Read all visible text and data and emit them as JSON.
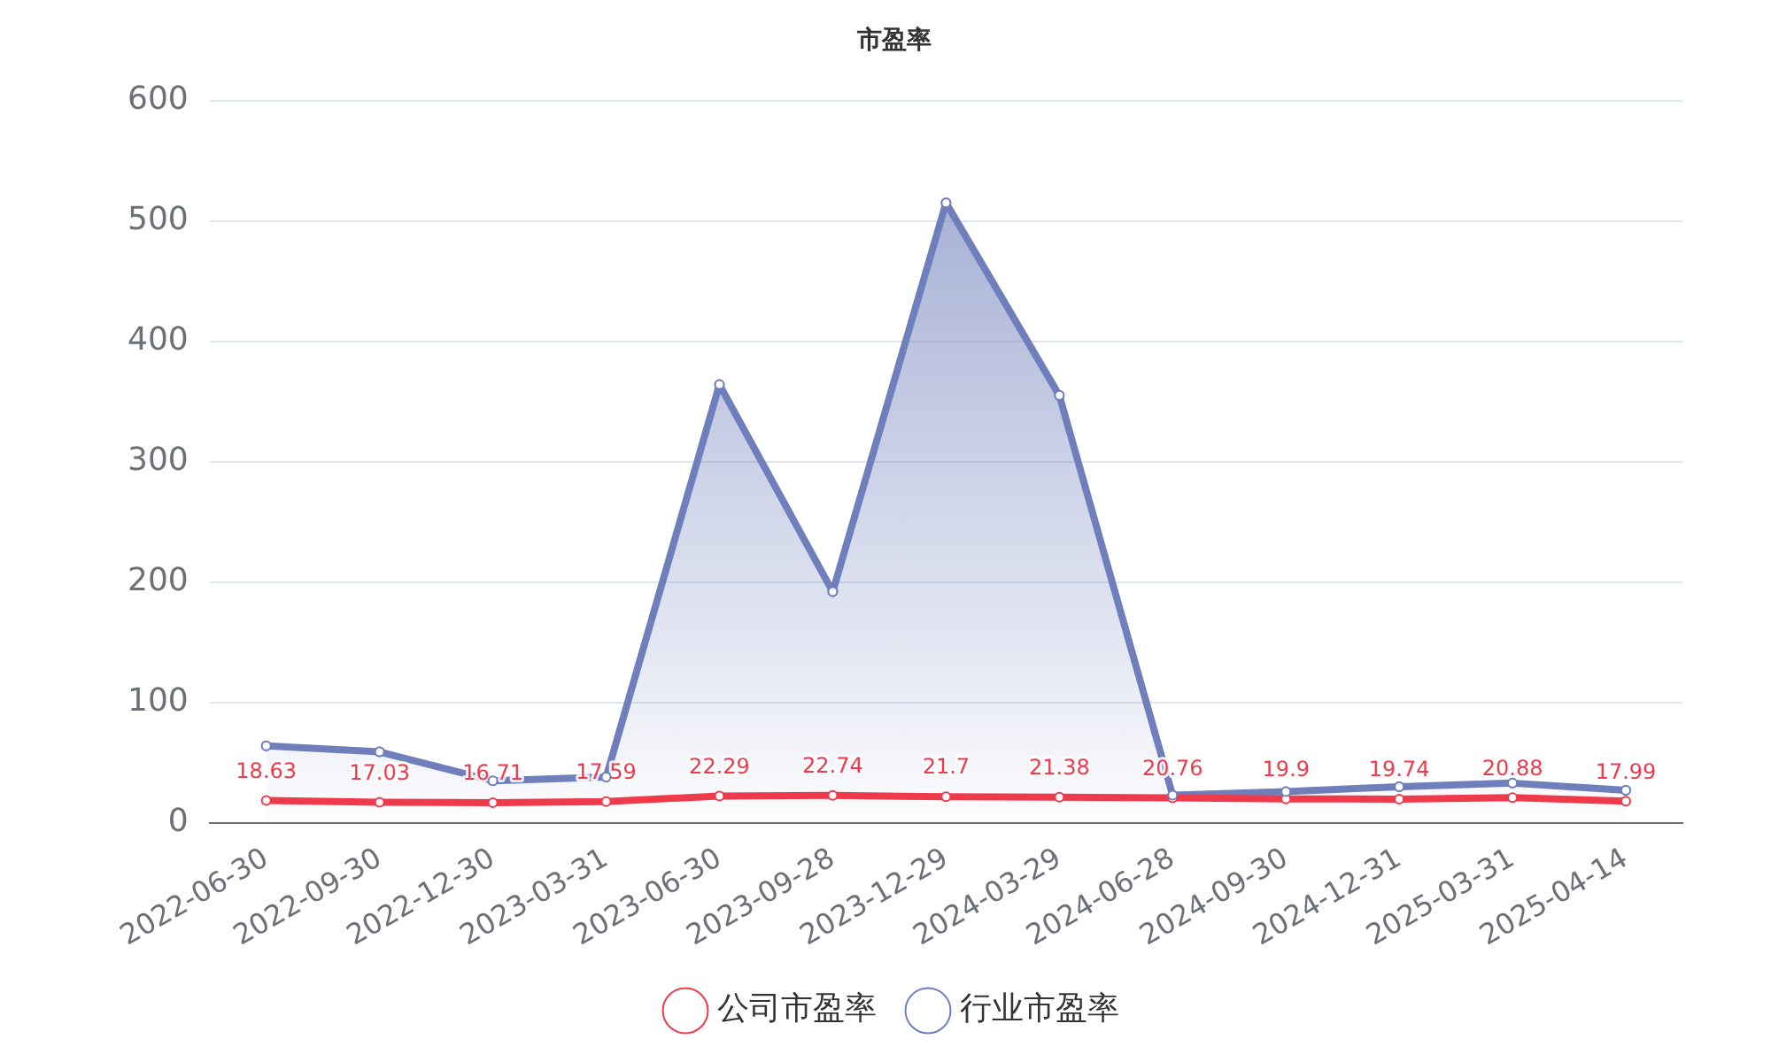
{
  "chart_data": {
    "type": "line",
    "title": "市盈率",
    "categories": [
      "2022-06-30",
      "2022-09-30",
      "2022-12-30",
      "2023-03-31",
      "2023-06-30",
      "2023-09-28",
      "2023-12-29",
      "2024-03-29",
      "2024-06-28",
      "2024-09-30",
      "2024-12-31",
      "2025-03-31",
      "2025-04-14"
    ],
    "series": [
      {
        "name": "公司市盈率",
        "type": "line",
        "color": "#ee3a4a",
        "values": [
          18.63,
          17.03,
          16.71,
          17.59,
          22.29,
          22.74,
          21.7,
          21.38,
          20.76,
          19.9,
          19.74,
          20.88,
          17.99
        ],
        "value_labels": [
          "18.63",
          "17.03",
          "16.71",
          "17.59",
          "22.29",
          "22.74",
          "21.7",
          "21.38",
          "20.76",
          "19.9",
          "19.74",
          "20.88",
          "17.99"
        ]
      },
      {
        "name": "行业市盈率",
        "type": "area",
        "color": "#6f7fbb",
        "values": [
          64,
          59,
          35,
          38,
          364,
          192,
          515,
          355,
          23,
          26,
          30,
          33,
          27
        ]
      }
    ],
    "ylim": [
      0,
      600
    ],
    "yticks": [
      0,
      100,
      200,
      300,
      400,
      500,
      600
    ],
    "grid": "y",
    "legend": "bottom",
    "marker": "circle"
  }
}
